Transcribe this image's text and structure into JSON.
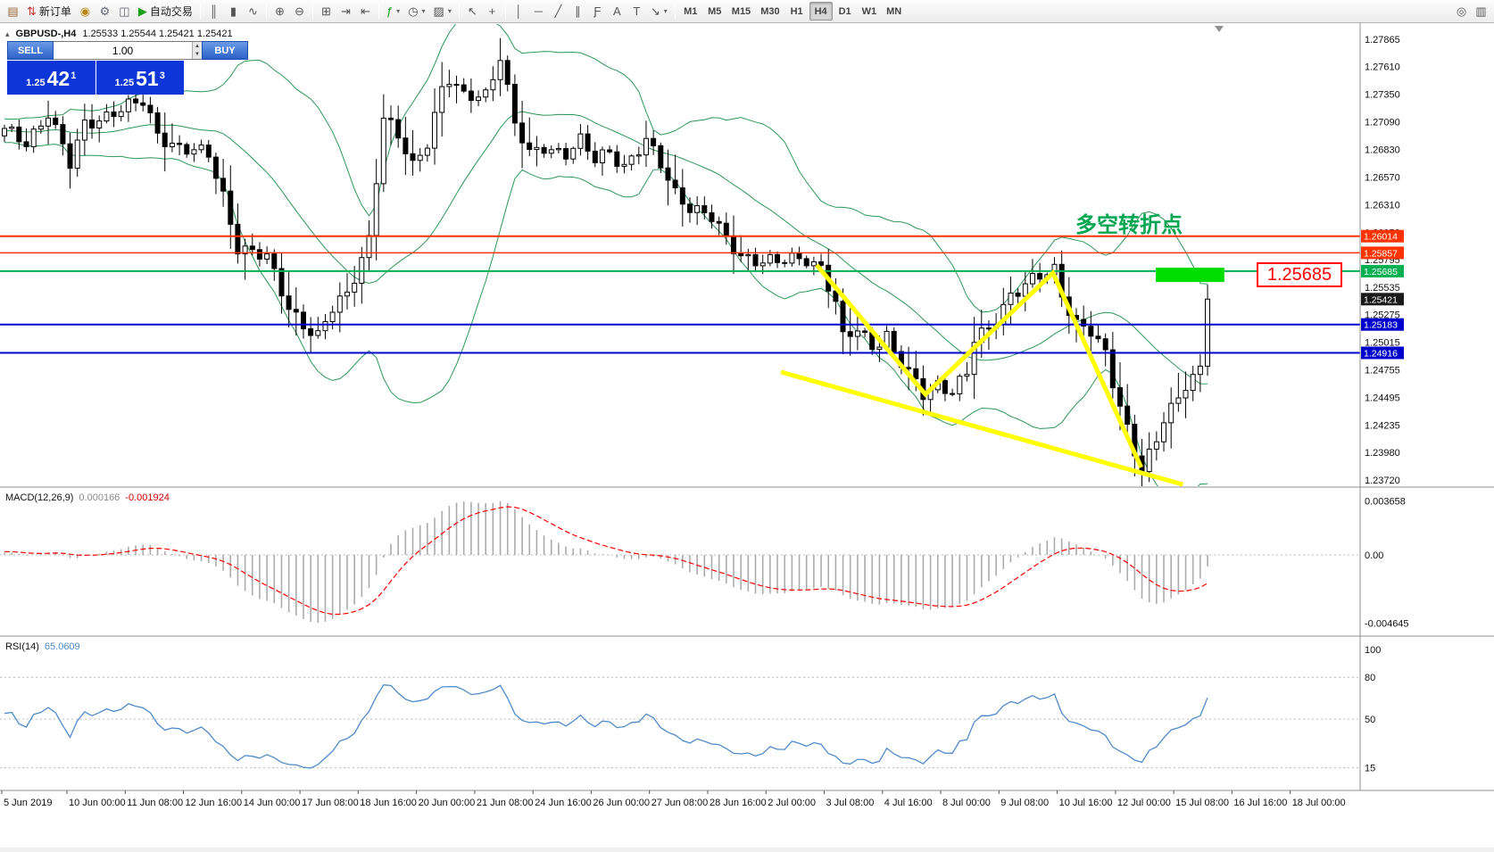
{
  "toolbar": {
    "groups": [
      {
        "items": [
          {
            "name": "new-chart-icon",
            "glyph": "▤",
            "color": "#996633"
          },
          {
            "name": "new-order-button",
            "glyph": "⇅",
            "color": "#cc3333",
            "label": "新订单"
          },
          {
            "name": "metaeditor-icon",
            "glyph": "◉",
            "color": "#b8860b"
          },
          {
            "name": "settings-icon",
            "glyph": "⚙",
            "color": "#667"
          },
          {
            "name": "navigator-icon",
            "glyph": "◫",
            "color": "#667"
          },
          {
            "name": "autotrading-button",
            "glyph": "▶",
            "color": "#18a018",
            "label": "自动交易"
          }
        ]
      },
      {
        "items": [
          {
            "name": "bar-chart-icon",
            "glyph": "║"
          },
          {
            "name": "candlestick-chart-icon",
            "glyph": "▮"
          },
          {
            "name": "line-chart-icon",
            "glyph": "∿"
          }
        ]
      },
      {
        "items": [
          {
            "name": "zoom-in-icon",
            "glyph": "⊕"
          },
          {
            "name": "zoom-out-icon",
            "glyph": "⊖"
          }
        ]
      },
      {
        "items": [
          {
            "name": "tile-windows-icon",
            "glyph": "⊞"
          },
          {
            "name": "auto-scroll-icon",
            "glyph": "⇥"
          },
          {
            "name": "chart-shift-icon",
            "glyph": "⇤"
          }
        ]
      },
      {
        "items": [
          {
            "name": "indicators-icon",
            "glyph": "ƒ",
            "color": "#18a018",
            "caret": true
          },
          {
            "name": "periods-icon",
            "glyph": "◷",
            "caret": true
          },
          {
            "name": "templates-icon",
            "glyph": "▨",
            "caret": true
          }
        ]
      },
      {
        "items": [
          {
            "name": "cursor-icon",
            "glyph": "↖"
          },
          {
            "name": "crosshair-icon",
            "glyph": "+"
          }
        ]
      },
      {
        "items": [
          {
            "name": "vertical-line-icon",
            "glyph": "│"
          },
          {
            "name": "horizontal-line-icon",
            "glyph": "─"
          },
          {
            "name": "trendline-icon",
            "glyph": "╱"
          },
          {
            "name": "equidistant-channel-icon",
            "glyph": "∥"
          },
          {
            "name": "fibonacci-icon",
            "glyph": "Ƒ"
          },
          {
            "name": "text-icon",
            "glyph": "A"
          },
          {
            "name": "label-icon",
            "glyph": "T"
          },
          {
            "name": "arrows-icon",
            "glyph": "↘",
            "caret": true
          }
        ]
      }
    ],
    "timeframes": [
      {
        "label": "M1"
      },
      {
        "label": "M5"
      },
      {
        "label": "M15"
      },
      {
        "label": "M30"
      },
      {
        "label": "H1"
      },
      {
        "label": "H4",
        "active": true
      },
      {
        "label": "D1"
      },
      {
        "label": "W1"
      },
      {
        "label": "MN"
      }
    ],
    "right_items": [
      {
        "name": "target-icon",
        "glyph": "◎"
      },
      {
        "name": "layout-icon",
        "glyph": "▥"
      }
    ]
  },
  "quote_header": {
    "symbol": "GBPUSD-,H4",
    "ohlc": "1.25533 1.25544 1.25421 1.25421"
  },
  "trade_panel": {
    "sell_label": "SELL",
    "buy_label": "BUY",
    "volume": "1.00",
    "sell_price": {
      "small": "1.25",
      "big": "42",
      "sup": "1"
    },
    "buy_price": {
      "small": "1.25",
      "big": "51",
      "sup": "3"
    }
  },
  "annotations": {
    "turning_point_text": "多空转折点",
    "price_label": "1.25685"
  },
  "chart_data": {
    "type": "candlestick",
    "symbol": "GBPUSD-",
    "timeframe": "H4",
    "current_ohlc": {
      "open": "1.25533",
      "high": "1.25544",
      "low": "1.25421",
      "close": "1.25421"
    },
    "price_ticks": [
      "1.27865",
      "1.27610",
      "1.27350",
      "1.27090",
      "1.26830",
      "1.26570",
      "1.26310",
      "1.26050",
      "1.25795",
      "1.25535",
      "1.25275",
      "1.25015",
      "1.24755",
      "1.24495",
      "1.24235",
      "1.23980",
      "1.23720"
    ],
    "hlines": [
      {
        "price": 1.26014,
        "label": "1.26014",
        "color": "#ff3300",
        "width": 2
      },
      {
        "price": 1.25857,
        "label": "1.25857",
        "color": "#ff3300",
        "width": 1.5
      },
      {
        "price": 1.25685,
        "label": "1.25685",
        "color": "#00b050",
        "width": 2
      },
      {
        "price": 1.25183,
        "label": "1.25183",
        "color": "#0000cd",
        "width": 2
      },
      {
        "price": 1.24916,
        "label": "1.24916",
        "color": "#0000cd",
        "width": 2
      }
    ],
    "current_price": {
      "value": 1.25421,
      "label": "1.25421",
      "tag_color": "#1a1a1a"
    },
    "bollinger": {
      "period": 20,
      "deviation": 2,
      "color": "#2c9658"
    },
    "candle_colors": {
      "bull": "#ffffff",
      "bear": "#000000",
      "outline": "#000000"
    },
    "price_path": [
      [
        -30,
        1.2692
      ],
      [
        -22,
        1.2704
      ],
      [
        -15,
        1.2695
      ],
      [
        -8,
        1.2707
      ],
      [
        -3,
        1.2698
      ],
      [
        0,
        1.27
      ],
      [
        3,
        1.2689
      ],
      [
        6,
        1.2719
      ],
      [
        9,
        1.2668
      ],
      [
        11,
        1.2706
      ],
      [
        15,
        1.2719
      ],
      [
        19,
        1.2727
      ],
      [
        21,
        1.2698
      ],
      [
        24,
        1.2685
      ],
      [
        28,
        1.2677
      ],
      [
        30,
        1.264
      ],
      [
        32,
        1.2592
      ],
      [
        36,
        1.258
      ],
      [
        39,
        1.2535
      ],
      [
        42,
        1.2512
      ],
      [
        43,
        1.2506
      ],
      [
        45,
        1.2532
      ],
      [
        47,
        1.2547
      ],
      [
        50,
        1.26
      ],
      [
        52,
        1.2712
      ],
      [
        54,
        1.2694
      ],
      [
        56,
        1.2668
      ],
      [
        58,
        1.2692
      ],
      [
        60,
        1.274
      ],
      [
        61,
        1.2748
      ],
      [
        63,
        1.2731
      ],
      [
        66,
        1.2736
      ],
      [
        68,
        1.2772
      ],
      [
        70,
        1.2706
      ],
      [
        72,
        1.2677
      ],
      [
        74,
        1.2686
      ],
      [
        77,
        1.268
      ],
      [
        79,
        1.269
      ],
      [
        81,
        1.2672
      ],
      [
        83,
        1.2682
      ],
      [
        85,
        1.2668
      ],
      [
        88,
        1.269
      ],
      [
        90,
        1.2668
      ],
      [
        92,
        1.2643
      ],
      [
        94,
        1.263
      ],
      [
        97,
        1.2618
      ],
      [
        99,
        1.2597
      ],
      [
        101,
        1.2584
      ],
      [
        103,
        1.258
      ],
      [
        106,
        1.2576
      ],
      [
        108,
        1.2579
      ],
      [
        110,
        1.2581
      ],
      [
        112,
        1.2573
      ],
      [
        114,
        1.2538
      ],
      [
        115,
        1.2504
      ],
      [
        117,
        1.2513
      ],
      [
        119,
        1.2499
      ],
      [
        121,
        1.2509
      ],
      [
        122,
        1.2492
      ],
      [
        124,
        1.2471
      ],
      [
        126,
        1.2452
      ],
      [
        128,
        1.2463
      ],
      [
        130,
        1.2457
      ],
      [
        132,
        1.2471
      ],
      [
        133,
        1.2503
      ],
      [
        135,
        1.2513
      ],
      [
        137,
        1.2537
      ],
      [
        138,
        1.2547
      ],
      [
        140,
        1.2556
      ],
      [
        142,
        1.2562
      ],
      [
        144,
        1.2569
      ],
      [
        145,
        1.2547
      ],
      [
        147,
        1.2521
      ],
      [
        149,
        1.2512
      ],
      [
        151,
        1.2488
      ],
      [
        152,
        1.2462
      ],
      [
        154,
        1.2421
      ],
      [
        155,
        1.2401
      ],
      [
        156,
        1.2385
      ],
      [
        158,
        1.2408
      ],
      [
        159,
        1.2428
      ],
      [
        161,
        1.2446
      ],
      [
        162,
        1.2462
      ],
      [
        163,
        1.2471
      ],
      [
        164,
        1.2478
      ],
      [
        165,
        1.2542
      ]
    ],
    "trendlines": {
      "color": "#ffff00",
      "zigzag": [
        [
          111.4,
          1.25743
        ],
        [
          126.3,
          1.24526
        ],
        [
          143.8,
          1.25667
        ],
        [
          155.9,
          1.23838
        ]
      ],
      "support": [
        [
          106.5,
          1.24736
        ],
        [
          161.6,
          1.23678
        ]
      ]
    },
    "highlight_rect": {
      "i0": 157.9,
      "i1": 167.3,
      "p0": 1.25583,
      "p1": 1.25718,
      "color": "#00dd00"
    },
    "macd": {
      "label": "MACD(12,26,9)",
      "value_main": "0.000166",
      "value_signal": "-0.001924",
      "scale": [
        "0.003658",
        "0.00",
        "-0.004645"
      ],
      "histogram_color": "#ababab",
      "signal_color": "#ff0000"
    },
    "rsi": {
      "label": "RSI(14)",
      "value": "65.0609",
      "levels": [
        100,
        80,
        50,
        15
      ],
      "color": "#4f8bc9"
    },
    "time_axis": [
      "5 Jun 2019",
      "10 Jun 00:00",
      "11 Jun 08:00",
      "12 Jun 16:00",
      "14 Jun 00:00",
      "17 Jun 08:00",
      "18 Jun 16:00",
      "20 Jun 00:00",
      "21 Jun 08:00",
      "24 Jun 16:00",
      "26 Jun 00:00",
      "27 Jun 08:00",
      "28 Jun 16:00",
      "2 Jul 00:00",
      "3 Jul 08:00",
      "4 Jul 16:00",
      "8 Jul 00:00",
      "9 Jul 08:00",
      "10 Jul 16:00",
      "12 Jul 00:00",
      "15 Jul 08:00",
      "16 Jul 16:00",
      "18 Jul 00:00"
    ]
  }
}
